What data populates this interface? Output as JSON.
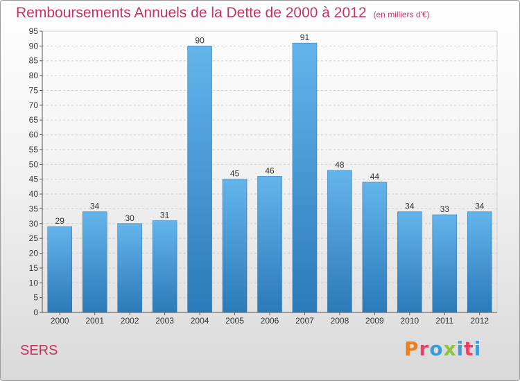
{
  "header": {
    "title": "Remboursements Annuels de la Dette de 2000 à 2012",
    "unit": "(en milliers d'€)"
  },
  "footer": {
    "commune": "SERS",
    "logo_text": "Proxiti"
  },
  "colors": {
    "title": "#c8325e",
    "bar_top": "#64b4ec",
    "bar_bottom": "#2b7ab9",
    "logo": [
      "#f07c1c",
      "#e8426a",
      "#3a9fd8",
      "#8cc43c",
      "#3a9fd8",
      "#e8426a",
      "#3a9fd8"
    ]
  },
  "chart_data": {
    "type": "bar",
    "categories": [
      "2000",
      "2001",
      "2002",
      "2003",
      "2004",
      "2005",
      "2006",
      "2007",
      "2008",
      "2009",
      "2010",
      "2011",
      "2012"
    ],
    "values": [
      29,
      34,
      30,
      31,
      90,
      45,
      46,
      91,
      48,
      44,
      34,
      33,
      34
    ],
    "ylim": [
      0,
      95
    ],
    "yticks": [
      0,
      5,
      10,
      15,
      20,
      25,
      30,
      35,
      40,
      45,
      50,
      55,
      60,
      65,
      70,
      75,
      80,
      85,
      90,
      95
    ],
    "grid": true,
    "data_labels": true,
    "xlabel": "",
    "ylabel": ""
  }
}
